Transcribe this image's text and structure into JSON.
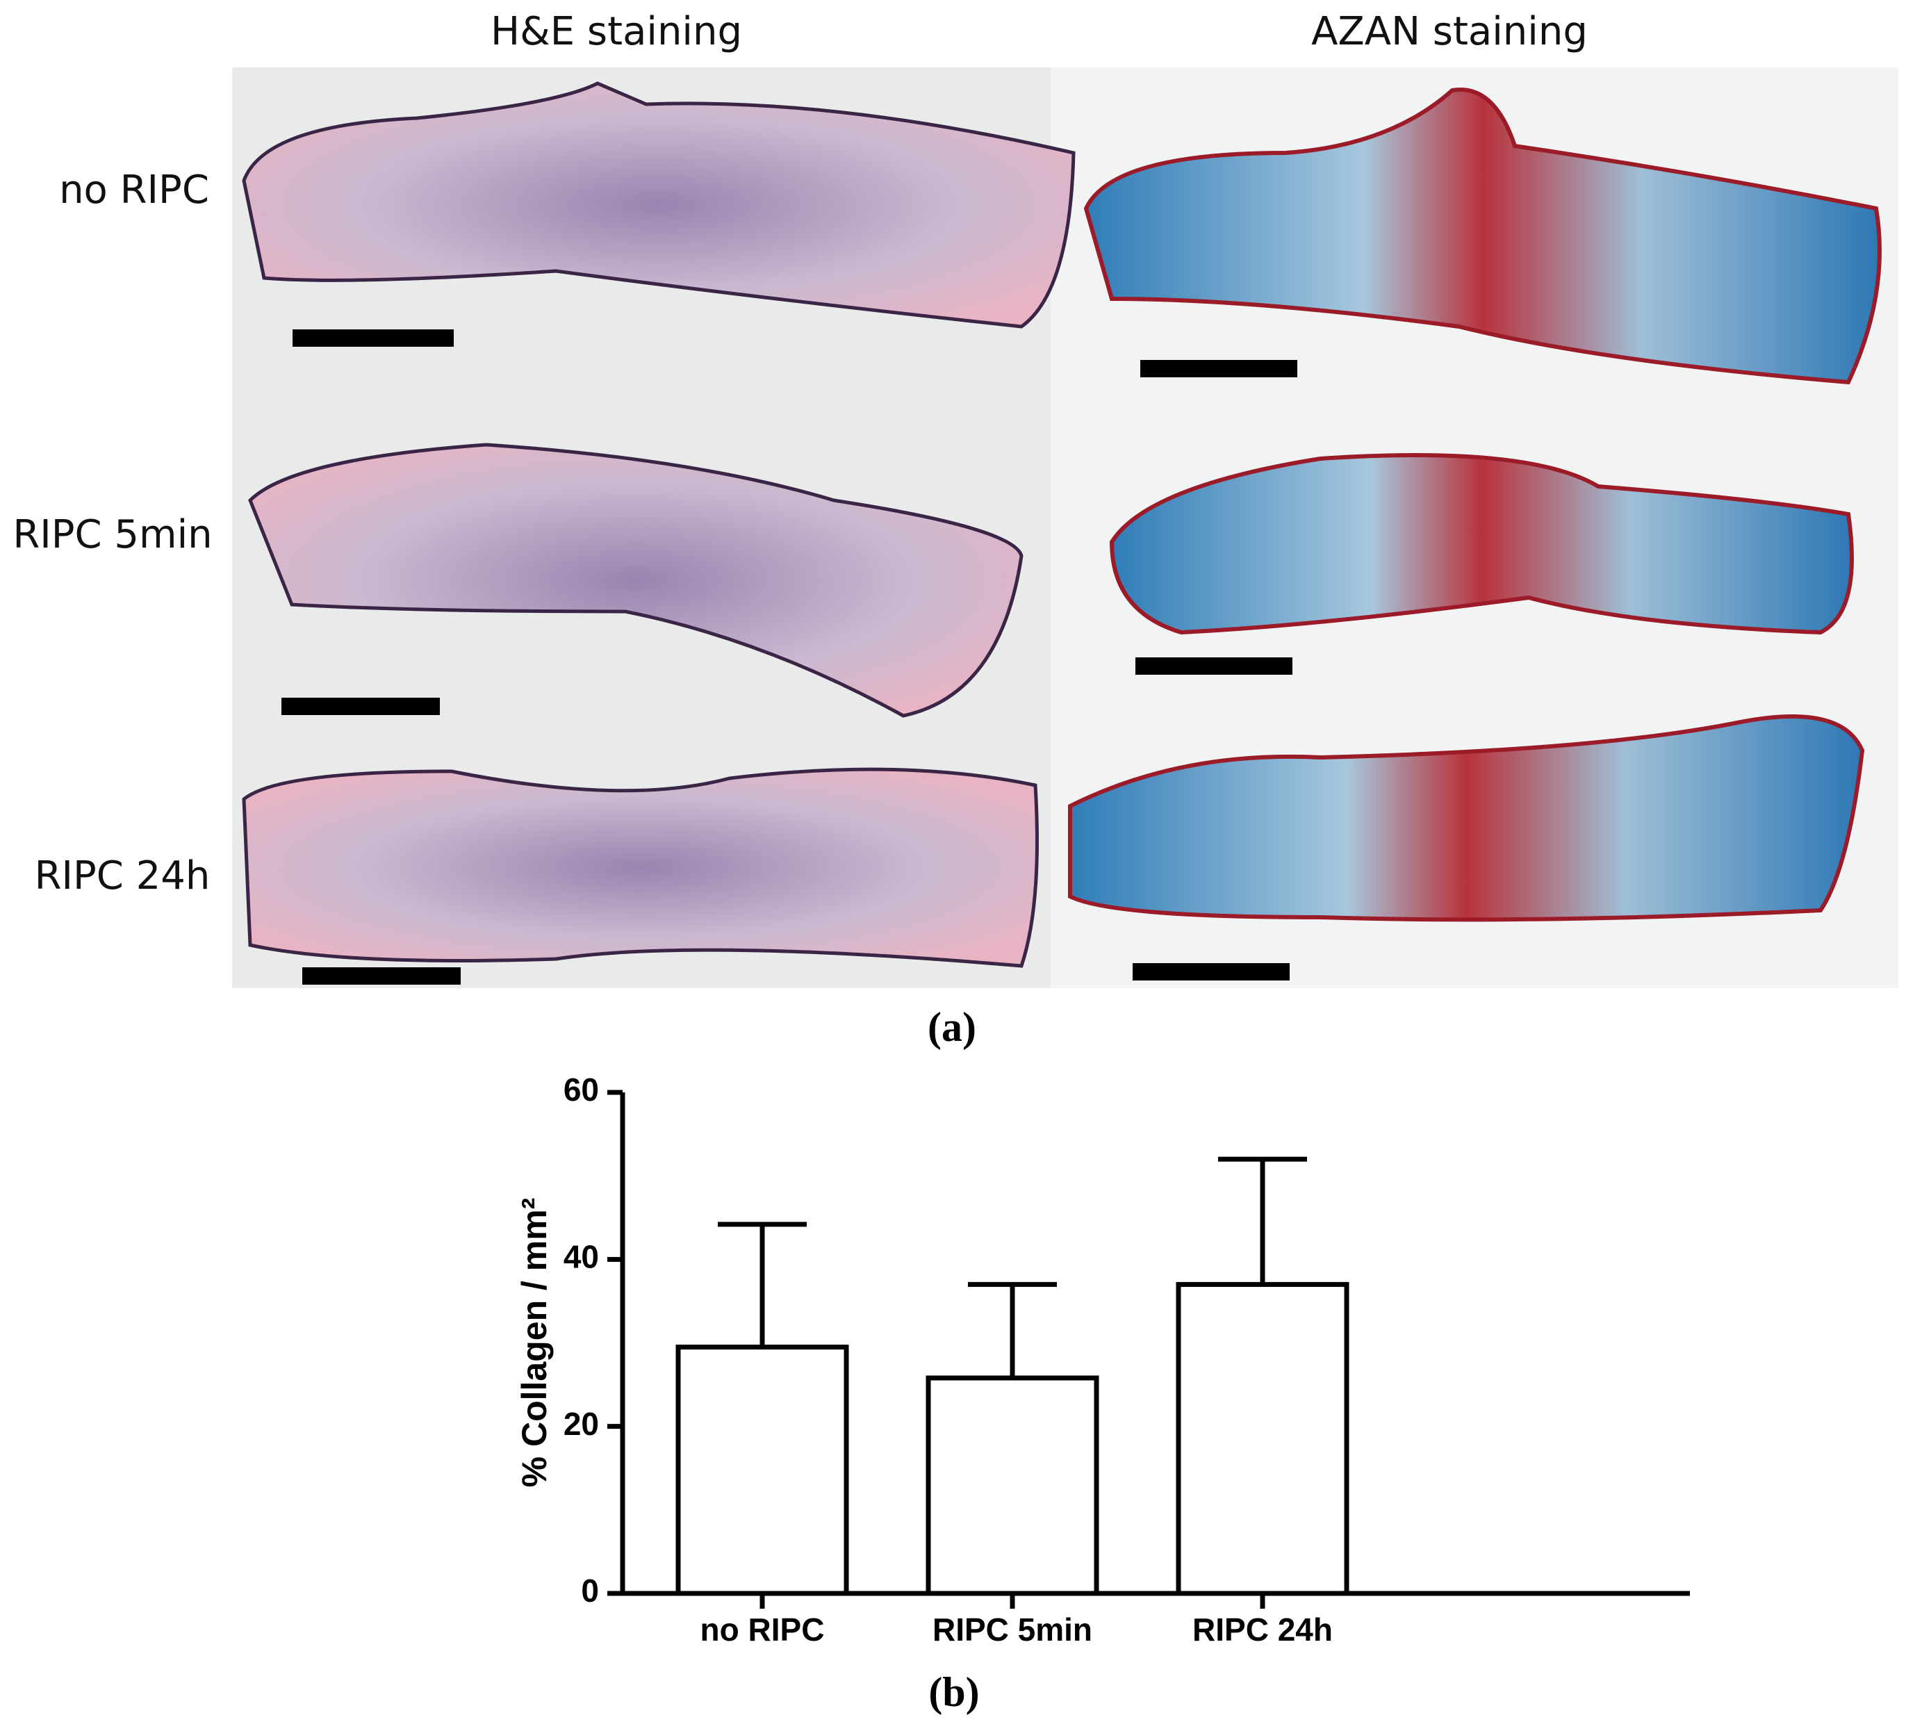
{
  "figure": {
    "columns": [
      "H&E staining",
      "AZAN staining"
    ],
    "rows": [
      "no RIPC",
      "RIPC 5min",
      "RIPC 24h"
    ],
    "label_a": "(a)",
    "label_b": "(b)"
  },
  "chart_data": {
    "type": "bar",
    "ylabel": "% Collagen / mm²",
    "categories": [
      "no RIPC",
      "RIPC 5min",
      "RIPC 24h"
    ],
    "values": [
      29.5,
      25.8,
      37
    ],
    "errors": [
      14.7,
      11.2,
      15
    ],
    "color": "#ffffff",
    "ylim": [
      0,
      60
    ],
    "yticks": [
      0,
      20,
      40,
      60
    ],
    "grid": false
  }
}
